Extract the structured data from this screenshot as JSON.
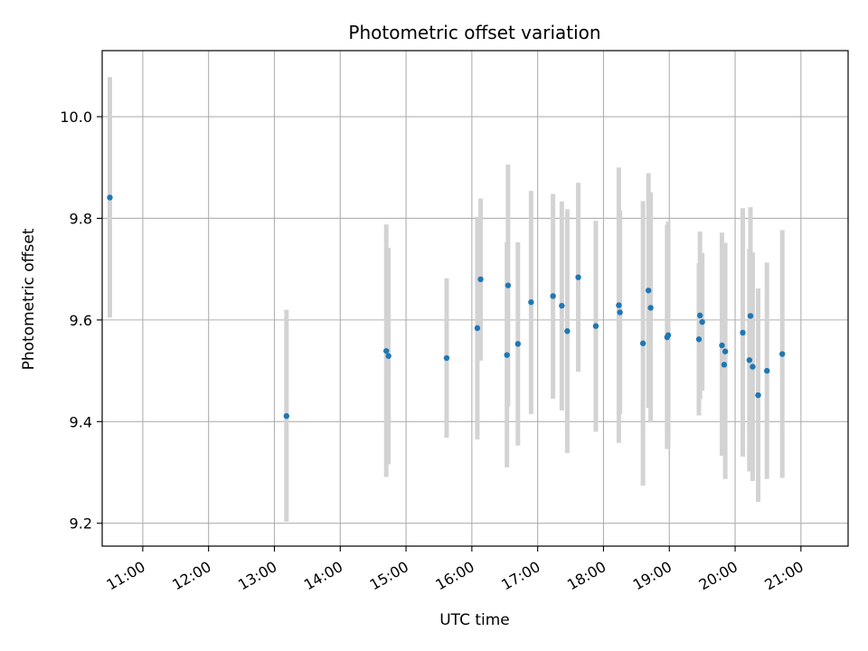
{
  "chart_data": {
    "type": "scatter",
    "title": "Photometric offset variation",
    "xlabel": "UTC time",
    "ylabel": "Photometric offset",
    "x_unit": "UTC time (HH:MM)",
    "xlim": [
      "10:23",
      "21:43"
    ],
    "ylim": [
      9.155,
      10.13
    ],
    "grid": true,
    "x_ticks": [
      "11:00",
      "12:00",
      "13:00",
      "14:00",
      "15:00",
      "16:00",
      "17:00",
      "18:00",
      "19:00",
      "20:00",
      "21:00"
    ],
    "y_ticks": [
      9.2,
      9.4,
      9.6,
      9.8,
      10.0
    ],
    "y_tick_labels": [
      "9.2",
      "9.4",
      "9.6",
      "9.8",
      "10.0"
    ],
    "colors": {
      "marker": "#1f77b4",
      "errorbar": "#d3d3d3",
      "grid": "#b0b0b0"
    },
    "points": [
      {
        "x": "10:30",
        "y": 9.841,
        "ylo": 9.605,
        "yhi": 10.078
      },
      {
        "x": "13:11",
        "y": 9.411,
        "ylo": 9.203,
        "yhi": 9.62
      },
      {
        "x": "14:42",
        "y": 9.539,
        "ylo": 9.291,
        "yhi": 9.788
      },
      {
        "x": "14:44",
        "y": 9.529,
        "ylo": 9.316,
        "yhi": 9.742
      },
      {
        "x": "15:37",
        "y": 9.525,
        "ylo": 9.368,
        "yhi": 9.682
      },
      {
        "x": "16:05",
        "y": 9.584,
        "ylo": 9.365,
        "yhi": 9.803
      },
      {
        "x": "16:08",
        "y": 9.68,
        "ylo": 9.52,
        "yhi": 9.839
      },
      {
        "x": "16:32",
        "y": 9.531,
        "ylo": 9.31,
        "yhi": 9.753
      },
      {
        "x": "16:33",
        "y": 9.668,
        "ylo": 9.43,
        "yhi": 9.906
      },
      {
        "x": "16:42",
        "y": 9.553,
        "ylo": 9.353,
        "yhi": 9.753
      },
      {
        "x": "16:54",
        "y": 9.635,
        "ylo": 9.415,
        "yhi": 9.854
      },
      {
        "x": "17:14",
        "y": 9.647,
        "ylo": 9.445,
        "yhi": 9.848
      },
      {
        "x": "17:22",
        "y": 9.628,
        "ylo": 9.422,
        "yhi": 9.833
      },
      {
        "x": "17:27",
        "y": 9.578,
        "ylo": 9.338,
        "yhi": 9.818
      },
      {
        "x": "17:37",
        "y": 9.684,
        "ylo": 9.498,
        "yhi": 9.87
      },
      {
        "x": "17:53",
        "y": 9.588,
        "ylo": 9.38,
        "yhi": 9.795
      },
      {
        "x": "18:14",
        "y": 9.629,
        "ylo": 9.358,
        "yhi": 9.9
      },
      {
        "x": "18:15",
        "y": 9.615,
        "ylo": 9.415,
        "yhi": 9.815
      },
      {
        "x": "18:36",
        "y": 9.554,
        "ylo": 9.274,
        "yhi": 9.834
      },
      {
        "x": "18:41",
        "y": 9.658,
        "ylo": 9.427,
        "yhi": 9.889
      },
      {
        "x": "18:43",
        "y": 9.624,
        "ylo": 9.398,
        "yhi": 9.851
      },
      {
        "x": "18:58",
        "y": 9.566,
        "ylo": 9.346,
        "yhi": 9.787
      },
      {
        "x": "18:59",
        "y": 9.57,
        "ylo": 9.347,
        "yhi": 9.794
      },
      {
        "x": "19:27",
        "y": 9.562,
        "ylo": 9.412,
        "yhi": 9.712
      },
      {
        "x": "19:28",
        "y": 9.609,
        "ylo": 9.445,
        "yhi": 9.774
      },
      {
        "x": "19:30",
        "y": 9.596,
        "ylo": 9.461,
        "yhi": 9.732
      },
      {
        "x": "19:48",
        "y": 9.55,
        "ylo": 9.333,
        "yhi": 9.772
      },
      {
        "x": "19:50",
        "y": 9.512,
        "ylo": 9.343,
        "yhi": 9.681
      },
      {
        "x": "19:51",
        "y": 9.538,
        "ylo": 9.287,
        "yhi": 9.752
      },
      {
        "x": "20:07",
        "y": 9.575,
        "ylo": 9.331,
        "yhi": 9.82
      },
      {
        "x": "20:13",
        "y": 9.521,
        "ylo": 9.302,
        "yhi": 9.74
      },
      {
        "x": "20:14",
        "y": 9.608,
        "ylo": 9.393,
        "yhi": 9.822
      },
      {
        "x": "20:16",
        "y": 9.508,
        "ylo": 9.283,
        "yhi": 9.733
      },
      {
        "x": "20:21",
        "y": 9.452,
        "ylo": 9.242,
        "yhi": 9.662
      },
      {
        "x": "20:29",
        "y": 9.5,
        "ylo": 9.287,
        "yhi": 9.713
      },
      {
        "x": "20:43",
        "y": 9.533,
        "ylo": 9.289,
        "yhi": 9.777
      }
    ]
  }
}
